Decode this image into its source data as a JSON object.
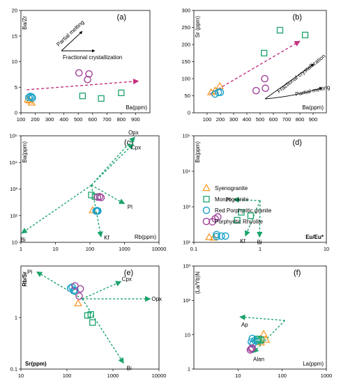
{
  "colors": {
    "syeno": "#F7941D",
    "monzo": "#1AA36B",
    "redpg": "#1BA1C7",
    "rhyo": "#A0449A",
    "trend": "#C4307F",
    "vector": "#1AA36B"
  },
  "legend": [
    "Syenogranite",
    "Monzogranite",
    "Red Porphyritic granite",
    "Porphyritic Rhyolite"
  ],
  "chart_data": [
    {
      "panel": "(a)",
      "type": "scatter",
      "xlabel": "Ba(ppm)",
      "ylabel": "Ba/Zr",
      "xscale": "linear",
      "yscale": "linear",
      "xlim": [
        100,
        1000
      ],
      "ylim": [
        0,
        20
      ],
      "xticks": [
        "100",
        "200",
        "300",
        "400",
        "500",
        "600",
        "700",
        "800",
        "900"
      ],
      "yticks": [
        "0",
        "5",
        "10",
        "15",
        "20"
      ],
      "annotations": [
        "Partial melting",
        "Fractional crystallization"
      ],
      "series": [
        {
          "name": "Syenogranite",
          "marker": "triangle",
          "points": [
            [
              148,
              2.6
            ],
            [
              160,
              2.4
            ],
            [
              175,
              2.0
            ]
          ]
        },
        {
          "name": "Monzogranite",
          "marker": "square",
          "points": [
            [
              530,
              3.3
            ],
            [
              660,
              2.8
            ],
            [
              800,
              3.9
            ]
          ]
        },
        {
          "name": "Red Porphyritic granite",
          "marker": "circle",
          "points": [
            [
              155,
              3.0
            ],
            [
              165,
              3.2
            ],
            [
              175,
              3.1
            ],
            [
              180,
              2.9
            ]
          ]
        },
        {
          "name": "Porphyritic Rhyolite",
          "marker": "circle",
          "points": [
            [
              505,
              7.8
            ],
            [
              575,
              7.6
            ],
            [
              565,
              6.5
            ]
          ]
        }
      ],
      "trend": [
        [
          140,
          4.5
        ],
        [
          920,
          6.2
        ]
      ]
    },
    {
      "panel": "(b)",
      "type": "scatter",
      "xlabel": "Ba(ppm)",
      "ylabel": "Sr (ppm)",
      "xscale": "linear",
      "yscale": "linear",
      "xlim": [
        0,
        1000
      ],
      "ylim": [
        0,
        300
      ],
      "xticks": [
        "100",
        "200",
        "300",
        "400",
        "500",
        "600",
        "700",
        "800",
        "900"
      ],
      "yticks": [
        "0",
        "50",
        "100",
        "150",
        "200",
        "250",
        "300"
      ],
      "annotations": [
        "Fractional crystallization",
        "Partial melting"
      ],
      "series": [
        {
          "name": "Syenogranite",
          "marker": "triangle",
          "points": [
            [
              130,
              60
            ],
            [
              160,
              65
            ],
            [
              195,
              78
            ]
          ]
        },
        {
          "name": "Monzogranite",
          "marker": "square",
          "points": [
            [
              530,
              175
            ],
            [
              650,
              242
            ],
            [
              840,
              228
            ]
          ]
        },
        {
          "name": "Red Porphyritic granite",
          "marker": "circle",
          "points": [
            [
              160,
              55
            ],
            [
              185,
              60
            ],
            [
              200,
              60
            ]
          ]
        },
        {
          "name": "Porphyritic Rhyolite",
          "marker": "circle",
          "points": [
            [
              470,
              65
            ],
            [
              535,
              100
            ],
            [
              540,
              72
            ]
          ]
        }
      ],
      "trend": [
        [
          120,
          55
        ],
        [
          800,
          210
        ]
      ]
    },
    {
      "panel": "(c)",
      "type": "scatter",
      "xlabel": "Rb(ppm)",
      "ylabel": "Ba(ppm)",
      "xscale": "log",
      "yscale": "log",
      "xlim": [
        1,
        10000
      ],
      "ylim": [
        10,
        100000
      ],
      "xticks": [
        "1",
        "10",
        "100",
        "1000",
        "10000"
      ],
      "yticks": [
        "10",
        "10²",
        "10³",
        "10⁴",
        "10⁵"
      ],
      "vector_labels": [
        "Opx",
        "Cpx",
        "Pl",
        "Bi",
        "Kf"
      ],
      "series": [
        {
          "name": "Syenogranite",
          "marker": "triangle",
          "points": [
            [
              120,
              160
            ]
          ]
        },
        {
          "name": "Monzogranite",
          "marker": "square",
          "points": [
            [
              110,
              600
            ],
            [
              140,
              520
            ]
          ]
        },
        {
          "name": "Red Porphyritic granite",
          "marker": "circle",
          "points": [
            [
              150,
              150
            ],
            [
              160,
              155
            ],
            [
              170,
              150
            ]
          ]
        },
        {
          "name": "Porphyritic Rhyolite",
          "marker": "circle",
          "points": [
            [
              165,
              500
            ],
            [
              190,
              520
            ],
            [
              210,
              480
            ]
          ]
        }
      ],
      "vectors": {
        "origin": [
          110,
          1400
        ],
        "targets": {
          "Opx": [
            2000,
            90000
          ],
          "Cpx": [
            1800,
            50000
          ],
          "Pl": [
            1000,
            280
          ],
          "Bi": [
            1.05,
            22
          ],
          "Kf": [
            210,
            16
          ]
        }
      }
    },
    {
      "panel": "(d)",
      "type": "scatter",
      "xlabel": "Eu/Eu*",
      "ylabel": "Ba(ppm)",
      "xscale": "log",
      "yscale": "log",
      "xlim": [
        0.1,
        10
      ],
      "ylim": [
        100,
        100000
      ],
      "xticks": [
        "0.1",
        "1",
        "10"
      ],
      "yticks": [
        "10²",
        "10³",
        "10⁴",
        "10⁵"
      ],
      "vector_labels": [
        "Pl",
        "Kf",
        "Bi"
      ],
      "series": [
        {
          "name": "Syenogranite",
          "marker": "triangle",
          "points": [
            [
              0.17,
              140
            ],
            [
              0.2,
              135
            ]
          ]
        },
        {
          "name": "Monzogranite",
          "marker": "square",
          "points": [
            [
              0.45,
              420
            ],
            [
              0.52,
              700
            ],
            [
              0.72,
              560
            ]
          ]
        },
        {
          "name": "Red Porphyritic granite",
          "marker": "circle",
          "points": [
            [
              0.22,
              145
            ],
            [
              0.26,
              150
            ],
            [
              0.3,
              150
            ],
            [
              0.22,
              165
            ]
          ]
        },
        {
          "name": "Porphyritic Rhyolite",
          "marker": "circle",
          "points": [
            [
              0.19,
              380
            ],
            [
              0.21,
              460
            ],
            [
              0.23,
              520
            ]
          ]
        }
      ],
      "vectors": {
        "origin": [
          1.0,
          1500
        ],
        "targets": {
          "Pl": [
            0.4,
            1600
          ],
          "Kf": [
            0.6,
            150
          ],
          "Bi": [
            0.98,
            140
          ]
        }
      }
    },
    {
      "panel": "(e)",
      "type": "scatter",
      "xlabel": "Sr(ppm)",
      "ylabel": "Rb/Sr",
      "xscale": "log",
      "yscale": "log",
      "xlim": [
        10,
        10000
      ],
      "ylim": [
        0.1,
        10
      ],
      "xticks": [
        "10",
        "100",
        "1000",
        "10000"
      ],
      "yticks": [
        "0.1",
        "1"
      ],
      "vector_labels": [
        "Pl",
        "Cpx",
        "Opx",
        "Bi"
      ],
      "series": [
        {
          "name": "Syenogranite",
          "marker": "triangle",
          "points": [
            [
              175,
              1.9
            ]
          ]
        },
        {
          "name": "Monzogranite",
          "marker": "square",
          "points": [
            [
              280,
              1.1
            ],
            [
              330,
              1.15
            ],
            [
              360,
              0.8
            ]
          ]
        },
        {
          "name": "Red Porphyritic granite",
          "marker": "circle",
          "points": [
            [
              120,
              3.7
            ],
            [
              140,
              3.3
            ],
            [
              150,
              3.4
            ],
            [
              130,
              3.9
            ]
          ]
        },
        {
          "name": "Porphyritic Rhyolite",
          "marker": "circle",
          "points": [
            [
              150,
              4.1
            ],
            [
              195,
              3.6
            ],
            [
              185,
              2.6
            ]
          ]
        }
      ],
      "vectors": {
        "origin": [
          215,
          2.3
        ],
        "targets": {
          "Pl": [
            22,
            7.7
          ],
          "Cpx": [
            1500,
            5.0
          ],
          "Opx": [
            6500,
            2.3
          ],
          "Bi": [
            1700,
            0.13
          ]
        }
      }
    },
    {
      "panel": "(f)",
      "type": "scatter",
      "xlabel": "La(ppm)",
      "ylabel": "(La/Yb)N",
      "xscale": "log",
      "yscale": "log",
      "xlim": [
        1,
        1000
      ],
      "ylim": [
        1,
        1000
      ],
      "xticks": [
        "10",
        "100",
        "1000"
      ],
      "yticks": [
        "1",
        "10",
        "10²",
        "10³"
      ],
      "vector_labels": [
        "Ap",
        "Alan"
      ],
      "series": [
        {
          "name": "Syenogranite",
          "marker": "triangle",
          "points": [
            [
              38,
              10.5
            ],
            [
              43,
              7.2
            ],
            [
              33,
              6.0
            ]
          ]
        },
        {
          "name": "Monzogranite",
          "marker": "square",
          "points": [
            [
              27,
              7.5
            ],
            [
              30,
              7.5
            ],
            [
              33,
              7.0
            ],
            [
              28,
              6.5
            ]
          ]
        },
        {
          "name": "Red Porphyritic granite",
          "marker": "circle",
          "points": [
            [
              21,
              7.8
            ],
            [
              24,
              6.8
            ],
            [
              20,
              6.2
            ],
            [
              22,
              5.5
            ]
          ]
        },
        {
          "name": "Porphyritic Rhyolite",
          "marker": "circle",
          "points": [
            [
              19,
              3.6
            ],
            [
              21,
              4.1
            ],
            [
              20,
              3.9
            ]
          ]
        }
      ],
      "vectors": {
        "origin": [
          115,
          26
        ],
        "targets": {
          "Ap": [
            11,
            33
          ],
          "Alan": [
            22,
            3.0
          ]
        }
      }
    }
  ]
}
